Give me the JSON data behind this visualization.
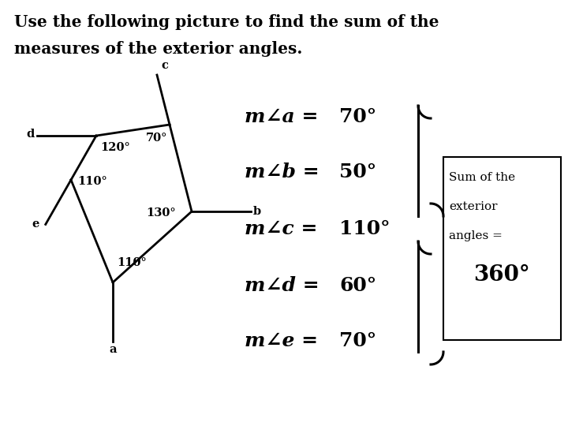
{
  "title_line1": "Use the following picture to find the sum of the",
  "title_line2": "measures of the exterior angles.",
  "title_fontsize": 14.5,
  "bg_color": "#ffffff",
  "angle_labels": [
    {
      "letter": "a",
      "angle_label": "m∠a",
      "value": "70°"
    },
    {
      "letter": "b",
      "angle_label": "m∠b",
      "value": "50°"
    },
    {
      "letter": "c",
      "angle_label": "m∠c",
      "value": "110°"
    },
    {
      "letter": "d",
      "angle_label": "m∠d",
      "value": "60°"
    },
    {
      "letter": "e",
      "angle_label": "m∠e",
      "value": "70°"
    }
  ],
  "sum_text_line1": "Sum of the",
  "sum_text_line2": "exterior",
  "sum_text_line3": "angles =",
  "sum_value": "360°"
}
